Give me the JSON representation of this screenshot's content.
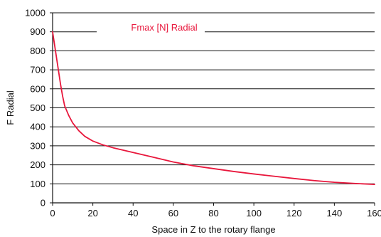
{
  "chart_data": {
    "type": "line",
    "title": "",
    "xlabel": "Space in Z to the rotary flange",
    "ylabel": "F Radial",
    "xlim": [
      0,
      160
    ],
    "ylim": [
      0,
      1000
    ],
    "x_ticks": [
      0,
      20,
      40,
      60,
      80,
      100,
      120,
      140,
      160
    ],
    "y_ticks": [
      0,
      100,
      200,
      300,
      400,
      500,
      600,
      700,
      800,
      900,
      1000
    ],
    "grid": "horizontal",
    "legend_position": "top",
    "series": [
      {
        "name": "Fmax [N] Radial",
        "color": "#e8173c",
        "points": [
          [
            0,
            900
          ],
          [
            1,
            830
          ],
          [
            2,
            760
          ],
          [
            3,
            690
          ],
          [
            4,
            620
          ],
          [
            5,
            560
          ],
          [
            6,
            510
          ],
          [
            8,
            460
          ],
          [
            10,
            420
          ],
          [
            13,
            380
          ],
          [
            16,
            350
          ],
          [
            20,
            325
          ],
          [
            25,
            305
          ],
          [
            30,
            290
          ],
          [
            40,
            265
          ],
          [
            50,
            240
          ],
          [
            60,
            215
          ],
          [
            70,
            195
          ],
          [
            80,
            180
          ],
          [
            90,
            165
          ],
          [
            100,
            152
          ],
          [
            110,
            140
          ],
          [
            120,
            128
          ],
          [
            130,
            117
          ],
          [
            140,
            108
          ],
          [
            150,
            102
          ],
          [
            160,
            97
          ]
        ]
      }
    ]
  }
}
